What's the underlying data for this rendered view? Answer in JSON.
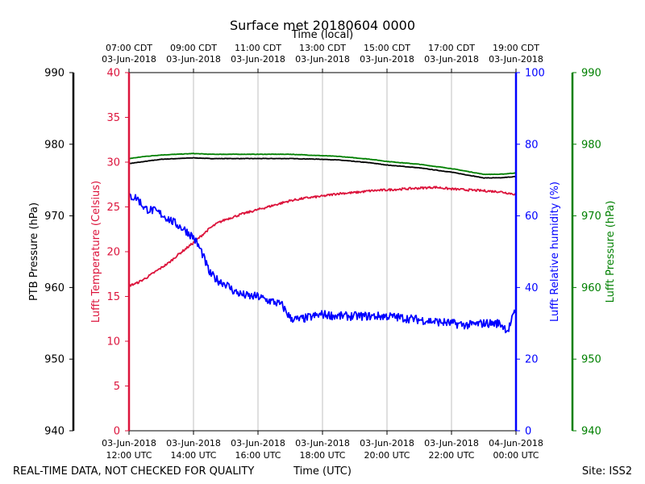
{
  "chart_data": {
    "type": "line",
    "title": "Surface met 20180604 0000",
    "top_xlabel": "Time (local)",
    "xlabel": "Time (UTC)",
    "footer_left": "REAL-TIME DATA, NOT CHECKED FOR QUALITY",
    "footer_right": "Site: ISS2",
    "x_range_hours_utc": [
      12,
      24
    ],
    "top_ticks": [
      {
        "hour": 12,
        "time": "07:00 CDT",
        "date": "03-Jun-2018"
      },
      {
        "hour": 14,
        "time": "09:00 CDT",
        "date": "03-Jun-2018"
      },
      {
        "hour": 16,
        "time": "11:00 CDT",
        "date": "03-Jun-2018"
      },
      {
        "hour": 18,
        "time": "13:00 CDT",
        "date": "03-Jun-2018"
      },
      {
        "hour": 20,
        "time": "15:00 CDT",
        "date": "03-Jun-2018"
      },
      {
        "hour": 22,
        "time": "17:00 CDT",
        "date": "03-Jun-2018"
      },
      {
        "hour": 24,
        "time": "19:00 CDT",
        "date": "03-Jun-2018"
      }
    ],
    "bottom_ticks": [
      {
        "hour": 12,
        "date": "03-Jun-2018",
        "time": "12:00 UTC"
      },
      {
        "hour": 14,
        "date": "03-Jun-2018",
        "time": "14:00 UTC"
      },
      {
        "hour": 16,
        "date": "03-Jun-2018",
        "time": "16:00 UTC"
      },
      {
        "hour": 18,
        "date": "03-Jun-2018",
        "time": "18:00 UTC"
      },
      {
        "hour": 20,
        "date": "03-Jun-2018",
        "time": "20:00 UTC"
      },
      {
        "hour": 22,
        "date": "03-Jun-2018",
        "time": "22:00 UTC"
      },
      {
        "hour": 24,
        "date": "04-Jun-2018",
        "time": "00:00 UTC"
      }
    ],
    "axes": {
      "ptb": {
        "label": "PTB Pressure (hPa)",
        "range": [
          940,
          990
        ],
        "ticks": [
          940,
          950,
          960,
          970,
          980,
          990
        ],
        "color": "#000000"
      },
      "temp": {
        "label": "Lufft Temperature (Celsius)",
        "range": [
          0,
          40
        ],
        "ticks": [
          0,
          5,
          10,
          15,
          20,
          25,
          30,
          35,
          40
        ],
        "color": "#dc143c"
      },
      "rh": {
        "label": "Lufft Relative humidity (%)",
        "range": [
          0,
          100
        ],
        "ticks": [
          0,
          20,
          40,
          60,
          80,
          100
        ],
        "color": "#0000ff"
      },
      "lufft_p": {
        "label": "Lufft Pressure (hPa)",
        "range": [
          940,
          990
        ],
        "ticks": [
          940,
          950,
          960,
          970,
          980,
          990
        ],
        "color": "#008000"
      }
    },
    "series": [
      {
        "name": "PTB Pressure",
        "axis": "ptb",
        "color": "#000000",
        "x": [
          12.0,
          12.5,
          13.0,
          13.5,
          14.0,
          14.5,
          15.0,
          15.5,
          16.0,
          16.5,
          17.0,
          17.5,
          18.0,
          18.5,
          19.0,
          19.5,
          20.0,
          20.5,
          21.0,
          21.5,
          22.0,
          22.5,
          23.0,
          23.5,
          24.0
        ],
        "y": [
          977.3,
          977.6,
          977.9,
          978.0,
          978.1,
          978.0,
          978.0,
          978.0,
          978.0,
          978.0,
          978.0,
          977.95,
          977.9,
          977.8,
          977.6,
          977.4,
          977.1,
          976.9,
          976.7,
          976.4,
          976.1,
          975.7,
          975.3,
          975.3,
          975.5
        ]
      },
      {
        "name": "Lufft Pressure",
        "axis": "lufft_p",
        "color": "#008000",
        "x": [
          12.0,
          12.5,
          13.0,
          13.5,
          14.0,
          14.5,
          15.0,
          15.5,
          16.0,
          16.5,
          17.0,
          17.5,
          18.0,
          18.5,
          19.0,
          19.5,
          20.0,
          20.5,
          21.0,
          21.5,
          22.0,
          22.5,
          23.0,
          23.5,
          24.0
        ],
        "y": [
          978.0,
          978.3,
          978.5,
          978.6,
          978.7,
          978.6,
          978.6,
          978.6,
          978.6,
          978.6,
          978.6,
          978.5,
          978.4,
          978.3,
          978.1,
          977.9,
          977.6,
          977.4,
          977.2,
          976.9,
          976.6,
          976.2,
          975.8,
          975.8,
          976.0
        ]
      },
      {
        "name": "Lufft Temperature",
        "axis": "temp",
        "color": "#dc143c",
        "x": [
          12.0,
          12.25,
          12.5,
          12.75,
          13.0,
          13.25,
          13.5,
          13.75,
          14.0,
          14.25,
          14.5,
          14.75,
          15.0,
          15.5,
          16.0,
          16.5,
          17.0,
          17.5,
          18.0,
          18.5,
          19.0,
          19.5,
          20.0,
          20.5,
          21.0,
          21.5,
          22.0,
          22.5,
          23.0,
          23.5,
          24.0
        ],
        "y": [
          16.2,
          16.5,
          17.0,
          17.6,
          18.2,
          18.8,
          19.6,
          20.3,
          21.0,
          21.8,
          22.6,
          23.2,
          23.6,
          24.2,
          24.7,
          25.2,
          25.7,
          26.0,
          26.2,
          26.5,
          26.6,
          26.8,
          26.9,
          27.0,
          27.1,
          27.2,
          27.0,
          26.9,
          26.8,
          26.7,
          26.4
        ]
      },
      {
        "name": "Lufft Relative humidity",
        "axis": "rh",
        "color": "#0000ff",
        "noise": 1.2,
        "x": [
          12.0,
          12.25,
          12.5,
          12.75,
          13.0,
          13.25,
          13.5,
          13.75,
          14.0,
          14.25,
          14.5,
          14.75,
          15.0,
          15.25,
          15.5,
          15.75,
          16.0,
          16.25,
          16.5,
          16.75,
          17.0,
          17.25,
          17.5,
          17.75,
          18.0,
          18.5,
          19.0,
          19.5,
          20.0,
          20.5,
          21.0,
          21.5,
          22.0,
          22.5,
          23.0,
          23.5,
          23.75,
          24.0
        ],
        "y": [
          65.5,
          65.0,
          62.0,
          61.5,
          60.5,
          59.0,
          57.5,
          56.0,
          54.0,
          50.0,
          44.0,
          42.0,
          41.0,
          39.0,
          38.0,
          37.5,
          37.5,
          36.5,
          36.0,
          35.0,
          31.5,
          31.0,
          31.5,
          32.0,
          32.5,
          32.0,
          32.0,
          32.0,
          32.0,
          31.5,
          31.0,
          30.5,
          30.0,
          29.5,
          30.0,
          30.0,
          28.0,
          34.0
        ]
      }
    ]
  }
}
